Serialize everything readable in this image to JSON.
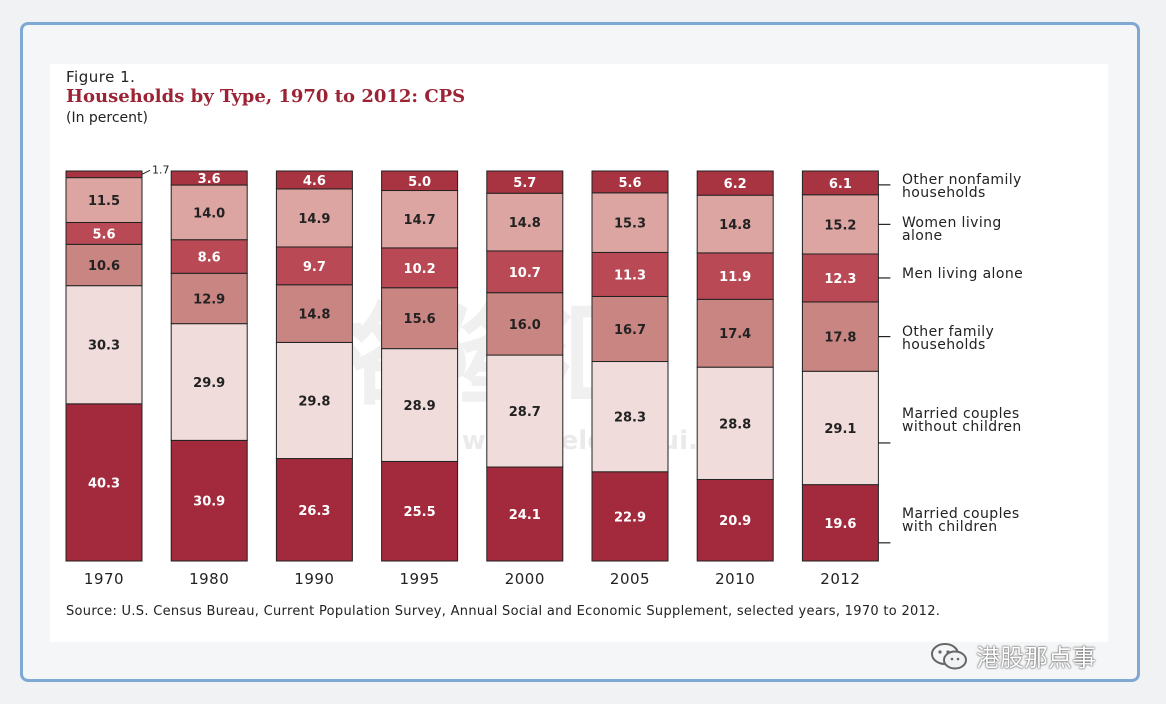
{
  "figure_label": "Figure 1.",
  "source": "Source: U.S. Census Bureau, Current Population Survey, Annual Social and Economic Supplement, selected years, 1970 to 2012.",
  "brand_text": "港股那点事",
  "chart_data": {
    "type": "bar",
    "stacked": true,
    "title": "Households by Type, 1970 to 2012: CPS",
    "subtitle": "(In percent)",
    "categories": [
      "1970",
      "1980",
      "1990",
      "1995",
      "2000",
      "2005",
      "2010",
      "2012"
    ],
    "ylim": [
      0,
      100
    ],
    "series": [
      {
        "name": "Married couples with children",
        "color": "#a22a3c",
        "label_color": "#ffffff",
        "values": [
          40.3,
          30.9,
          26.3,
          25.5,
          24.1,
          22.9,
          20.9,
          19.6
        ]
      },
      {
        "name": "Married couples without children",
        "color": "#f0dcdb",
        "label_color": "#222222",
        "values": [
          30.3,
          29.9,
          29.8,
          28.9,
          28.7,
          28.3,
          28.8,
          29.1
        ]
      },
      {
        "name": "Other family households",
        "color": "#c88581",
        "label_color": "#222222",
        "values": [
          10.6,
          12.9,
          14.8,
          15.6,
          16.0,
          16.7,
          17.4,
          17.8
        ]
      },
      {
        "name": "Men living alone",
        "color": "#b94a55",
        "label_color": "#ffffff",
        "values": [
          5.6,
          8.6,
          9.7,
          10.2,
          10.7,
          11.3,
          11.9,
          12.3
        ]
      },
      {
        "name": "Women living alone",
        "color": "#dca5a1",
        "label_color": "#222222",
        "values": [
          11.5,
          14.0,
          14.9,
          14.7,
          14.8,
          15.3,
          14.8,
          15.2
        ]
      },
      {
        "name": "Other nonfamily households",
        "color": "#a83441",
        "label_color": "#ffffff",
        "values": [
          1.7,
          3.6,
          4.6,
          5.0,
          5.7,
          5.6,
          6.2,
          6.1
        ]
      }
    ],
    "legend": [
      {
        "line1": "Other nonfamily",
        "line2": "households"
      },
      {
        "line1": "Women living",
        "line2": "alone"
      },
      {
        "line1": "Men living alone",
        "line2": ""
      },
      {
        "line1": "Other family",
        "line2": "households"
      },
      {
        "line1": "Married couples",
        "line2": "without children"
      },
      {
        "line1": "Married couples",
        "line2": "with children"
      }
    ],
    "legend_placement": "right",
    "watermark": {
      "cn": "格隆汇",
      "url": "www.gelonghui.com"
    }
  }
}
